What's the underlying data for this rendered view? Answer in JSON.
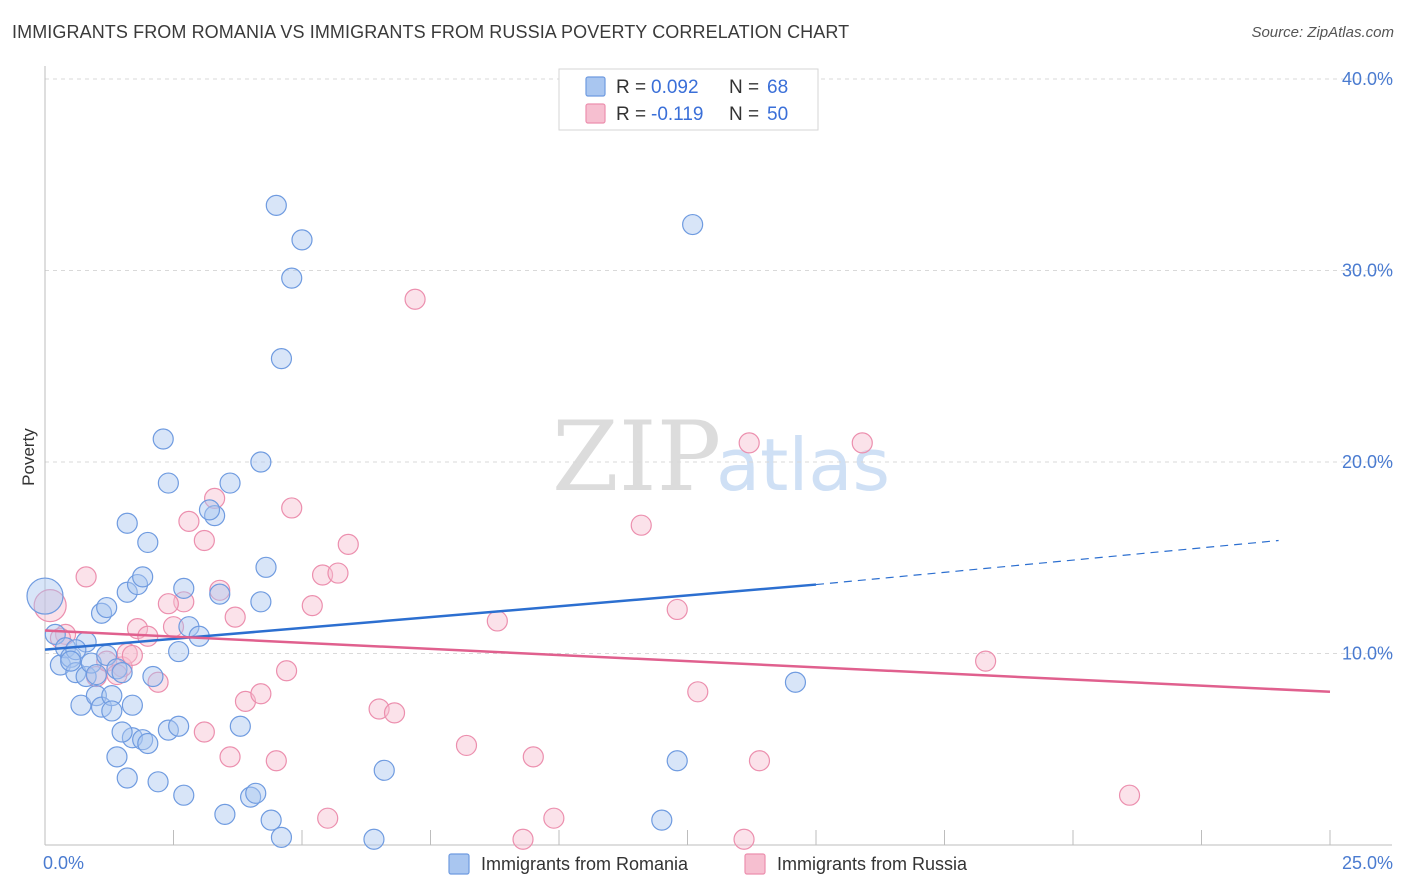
{
  "title": "IMMIGRANTS FROM ROMANIA VS IMMIGRANTS FROM RUSSIA POVERTY CORRELATION CHART",
  "source": "Source: ZipAtlas.com",
  "watermark": {
    "zip": "ZIP",
    "atlas": "atlas"
  },
  "colors": {
    "romania_fill": "#a9c6f0",
    "romania_stroke": "#6f9be0",
    "romania_line": "#2c6fd0",
    "russia_fill": "#f6bfd0",
    "russia_stroke": "#ec8fae",
    "russia_line": "#e0608e",
    "grid": "#d9d9d9",
    "tick_label": "#4a7bd0"
  },
  "legend": {
    "rows": [
      {
        "r_label": "R =",
        "r_value": "0.092",
        "n_label": "N =",
        "n_value": "68"
      },
      {
        "r_label": "R =",
        "r_value": "-0.119",
        "n_label": "N =",
        "n_value": "50"
      }
    ]
  },
  "chart_data": {
    "type": "scatter",
    "ylabel": "Poverty",
    "x_tick_labels": [
      "0.0%",
      "25.0%"
    ],
    "y_tick_labels": [
      "10.0%",
      "20.0%",
      "30.0%",
      "40.0%"
    ],
    "xlim": [
      0,
      25
    ],
    "ylim": [
      0,
      40
    ],
    "grid": true,
    "legend_position": "top-center",
    "series": [
      {
        "name": "Immigrants from Romania",
        "trend": {
          "x_start": 0.0,
          "y_start": 10.2,
          "x_end": 15.0,
          "y_end": 13.6,
          "x_dash_end": 24.0,
          "y_dash_end": 15.9
        },
        "points": [
          [
            0.0,
            13.0,
            18
          ],
          [
            0.2,
            11.0,
            10
          ],
          [
            0.3,
            9.4,
            10
          ],
          [
            0.4,
            10.3,
            10
          ],
          [
            0.5,
            9.8,
            10
          ],
          [
            0.6,
            9.0,
            10
          ],
          [
            0.7,
            7.3,
            10
          ],
          [
            0.8,
            8.8,
            10
          ],
          [
            0.9,
            9.5,
            10
          ],
          [
            1.0,
            7.8,
            10
          ],
          [
            1.1,
            7.2,
            10
          ],
          [
            1.2,
            9.9,
            10
          ],
          [
            1.3,
            7.8,
            10
          ],
          [
            1.4,
            9.2,
            10
          ],
          [
            1.5,
            9.0,
            10
          ],
          [
            0.8,
            10.6,
            10
          ],
          [
            1.1,
            12.1,
            10
          ],
          [
            1.2,
            12.4,
            10
          ],
          [
            1.6,
            16.8,
            10
          ],
          [
            1.6,
            13.2,
            10
          ],
          [
            1.8,
            13.6,
            10
          ],
          [
            1.9,
            14.0,
            10
          ],
          [
            2.0,
            15.8,
            10
          ],
          [
            2.3,
            21.2,
            10
          ],
          [
            2.4,
            18.9,
            10
          ],
          [
            2.7,
            13.4,
            10
          ],
          [
            2.8,
            11.4,
            10
          ],
          [
            2.6,
            10.1,
            10
          ],
          [
            3.0,
            10.9,
            10
          ],
          [
            3.3,
            17.2,
            10
          ],
          [
            3.2,
            17.5,
            10
          ],
          [
            3.4,
            13.1,
            10
          ],
          [
            3.6,
            18.9,
            10
          ],
          [
            4.2,
            12.7,
            10
          ],
          [
            4.3,
            14.5,
            10
          ],
          [
            4.2,
            20.0,
            10
          ],
          [
            4.5,
            33.4,
            10
          ],
          [
            5.0,
            31.6,
            10
          ],
          [
            4.8,
            29.6,
            10
          ],
          [
            4.6,
            25.4,
            10
          ],
          [
            1.7,
            5.6,
            10
          ],
          [
            1.7,
            7.3,
            10
          ],
          [
            1.5,
            5.9,
            10
          ],
          [
            1.9,
            5.5,
            10
          ],
          [
            2.0,
            5.3,
            10
          ],
          [
            2.1,
            8.8,
            10
          ],
          [
            2.4,
            6.0,
            10
          ],
          [
            1.4,
            4.6,
            10
          ],
          [
            1.6,
            3.5,
            10
          ],
          [
            2.2,
            3.3,
            10
          ],
          [
            2.7,
            2.6,
            10
          ],
          [
            3.5,
            1.6,
            10
          ],
          [
            4.0,
            2.5,
            10
          ],
          [
            4.1,
            2.7,
            10
          ],
          [
            4.4,
            1.3,
            10
          ],
          [
            4.6,
            0.4,
            10
          ],
          [
            6.4,
            0.3,
            10
          ],
          [
            6.6,
            3.9,
            10
          ],
          [
            12.3,
            4.4,
            10
          ],
          [
            12.0,
            1.3,
            10
          ],
          [
            14.6,
            8.5,
            10
          ],
          [
            12.6,
            32.4,
            10
          ],
          [
            2.6,
            6.2,
            10
          ],
          [
            3.8,
            6.2,
            10
          ],
          [
            0.6,
            10.2,
            10
          ],
          [
            1.0,
            8.9,
            10
          ],
          [
            0.5,
            9.6,
            10
          ],
          [
            1.3,
            7.0,
            10
          ]
        ]
      },
      {
        "name": "Immigrants from Russia",
        "trend": {
          "x_start": 0.0,
          "y_start": 11.2,
          "x_end": 25.0,
          "y_end": 8.0
        },
        "points": [
          [
            0.1,
            12.5,
            16
          ],
          [
            0.4,
            11.0,
            10
          ],
          [
            0.8,
            14.0,
            10
          ],
          [
            1.0,
            8.8,
            10
          ],
          [
            1.2,
            9.6,
            10
          ],
          [
            1.5,
            9.3,
            10
          ],
          [
            1.6,
            10.0,
            10
          ],
          [
            1.7,
            9.9,
            10
          ],
          [
            1.8,
            11.3,
            10
          ],
          [
            2.0,
            10.9,
            10
          ],
          [
            2.2,
            8.5,
            10
          ],
          [
            2.5,
            11.4,
            10
          ],
          [
            2.7,
            12.7,
            10
          ],
          [
            2.8,
            16.9,
            10
          ],
          [
            3.1,
            15.9,
            10
          ],
          [
            3.3,
            18.1,
            10
          ],
          [
            3.4,
            13.3,
            10
          ],
          [
            3.1,
            5.9,
            10
          ],
          [
            3.6,
            4.6,
            10
          ],
          [
            3.9,
            7.5,
            10
          ],
          [
            4.2,
            7.9,
            10
          ],
          [
            4.5,
            4.4,
            10
          ],
          [
            4.7,
            9.1,
            10
          ],
          [
            4.8,
            17.6,
            10
          ],
          [
            5.2,
            12.5,
            10
          ],
          [
            5.4,
            14.1,
            10
          ],
          [
            5.7,
            14.2,
            10
          ],
          [
            5.9,
            15.7,
            10
          ],
          [
            5.5,
            1.4,
            10
          ],
          [
            6.5,
            7.1,
            10
          ],
          [
            6.8,
            6.9,
            10
          ],
          [
            7.2,
            28.5,
            10
          ],
          [
            8.2,
            5.2,
            10
          ],
          [
            8.8,
            11.7,
            10
          ],
          [
            9.3,
            0.3,
            10
          ],
          [
            9.5,
            4.6,
            10
          ],
          [
            9.9,
            1.4,
            10
          ],
          [
            11.6,
            16.7,
            10
          ],
          [
            12.3,
            12.3,
            10
          ],
          [
            12.7,
            8.0,
            10
          ],
          [
            13.7,
            21.0,
            10
          ],
          [
            13.9,
            4.4,
            10
          ],
          [
            13.6,
            0.3,
            10
          ],
          [
            15.9,
            21.0,
            10
          ],
          [
            18.3,
            9.6,
            10
          ],
          [
            21.1,
            2.6,
            10
          ],
          [
            0.3,
            10.8,
            10
          ],
          [
            1.4,
            8.9,
            10
          ],
          [
            2.4,
            12.6,
            10
          ],
          [
            3.7,
            11.9,
            10
          ]
        ]
      }
    ]
  }
}
